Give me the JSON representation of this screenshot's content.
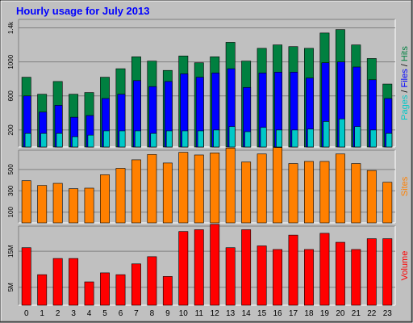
{
  "chart_data": {
    "type": "bar",
    "title": "Hourly usage for July 2013",
    "categories": [
      "0",
      "1",
      "2",
      "3",
      "4",
      "5",
      "6",
      "7",
      "8",
      "9",
      "10",
      "11",
      "12",
      "13",
      "14",
      "15",
      "16",
      "17",
      "18",
      "19",
      "20",
      "21",
      "22",
      "23"
    ],
    "panels": [
      {
        "id": "hits",
        "ylabel_parts": [
          {
            "text": "Pages",
            "color": "#00c8c8"
          },
          {
            "text": " / ",
            "color": "#000000"
          },
          {
            "text": "Files",
            "color": "#0000ff"
          },
          {
            "text": " / ",
            "color": "#000000"
          },
          {
            "text": "Hits",
            "color": "#008040"
          }
        ],
        "ylim": [
          0,
          1500
        ],
        "ticks": [
          {
            "value": 200,
            "label": "200"
          },
          {
            "value": 600,
            "label": "600"
          },
          {
            "value": 1000,
            "label": "1000"
          },
          {
            "value": 1400,
            "label": "1.4k"
          }
        ],
        "series": [
          {
            "name": "Hits",
            "color": "#008040",
            "values": [
              820,
              620,
              770,
              620,
              640,
              820,
              920,
              1060,
              1010,
              900,
              1070,
              990,
              1060,
              1230,
              1010,
              1160,
              1200,
              1180,
              1160,
              1340,
              1380,
              1200,
              1040,
              740
            ]
          },
          {
            "name": "Files",
            "color": "#0000ff",
            "values": [
              600,
              410,
              490,
              350,
              370,
              570,
              620,
              780,
              710,
              770,
              860,
              820,
              870,
              920,
              700,
              870,
              880,
              880,
              810,
              990,
              1000,
              940,
              790,
              570
            ]
          },
          {
            "name": "Pages",
            "color": "#00c8c8",
            "values": [
              160,
              160,
              160,
              120,
              140,
              190,
              190,
              190,
              160,
              190,
              190,
              190,
              200,
              240,
              180,
              230,
              200,
              200,
              210,
              300,
              330,
              240,
              200,
              160
            ]
          }
        ]
      },
      {
        "id": "sites",
        "ylabel_parts": [
          {
            "text": "Sites",
            "color": "#ff8000"
          }
        ],
        "ylim": [
          0,
          680
        ],
        "ticks": [
          {
            "value": 100,
            "label": "100"
          },
          {
            "value": 300,
            "label": "300"
          },
          {
            "value": 500,
            "label": "500"
          }
        ],
        "series": [
          {
            "name": "Sites",
            "color": "#ff8000",
            "values": [
              395,
              350,
              370,
              320,
              325,
              450,
              510,
              590,
              640,
              560,
              660,
              635,
              655,
              700,
              570,
              645,
              705,
              555,
              575,
              575,
              645,
              555,
              490,
              380
            ]
          }
        ]
      },
      {
        "id": "volume",
        "ylabel_parts": [
          {
            "text": "Volume",
            "color": "#ff0000"
          }
        ],
        "ylim": [
          0,
          22
        ],
        "ticks": [
          {
            "value": 5,
            "label": "5M"
          },
          {
            "value": 15,
            "label": "15M"
          }
        ],
        "series": [
          {
            "name": "Volume",
            "color": "#ff0000",
            "values": [
              16,
              8.5,
              13,
              13,
              6.5,
              9,
              8.5,
              11.5,
              13.5,
              8,
              20.5,
              21,
              22.5,
              16,
              21,
              16.5,
              15.5,
              19.5,
              15.5,
              20,
              17.5,
              15.5,
              18.5,
              18.5
            ]
          }
        ]
      }
    ]
  }
}
